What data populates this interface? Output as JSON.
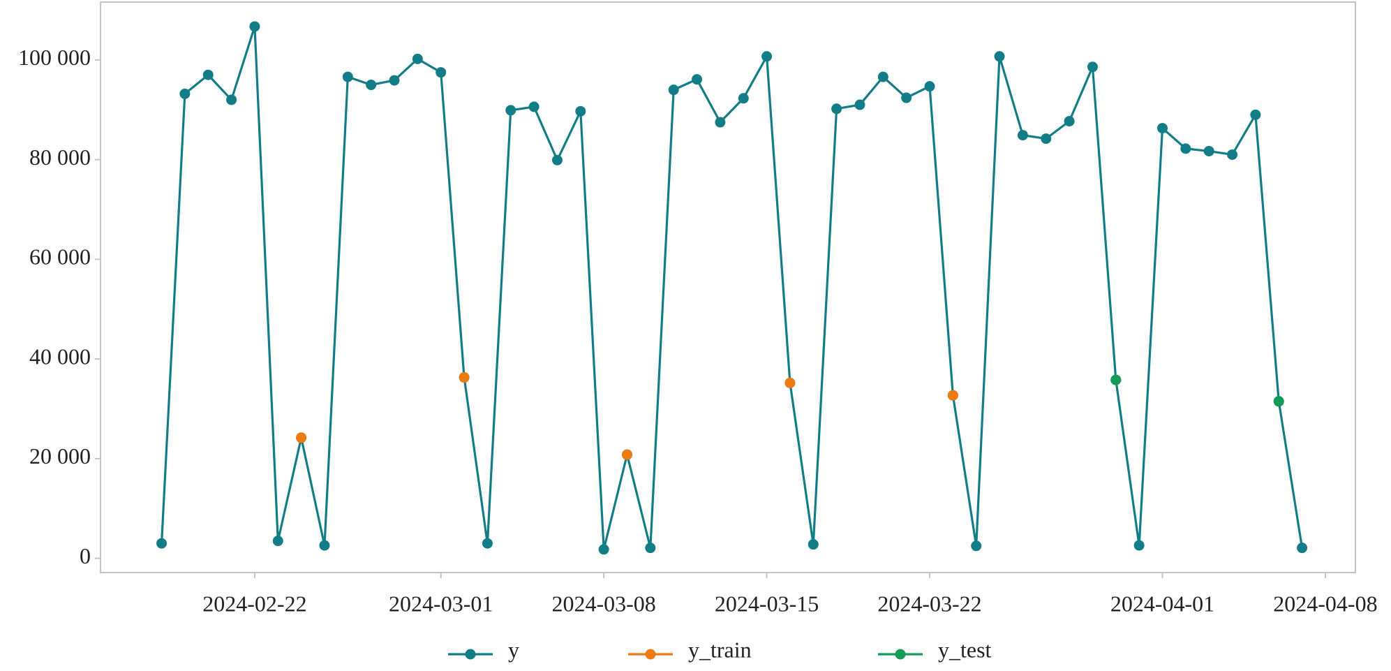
{
  "chart_data": {
    "type": "line",
    "x": [
      "2024-02-18",
      "2024-02-19",
      "2024-02-20",
      "2024-02-21",
      "2024-02-22",
      "2024-02-23",
      "2024-02-24",
      "2024-02-25",
      "2024-02-26",
      "2024-02-27",
      "2024-02-28",
      "2024-02-29",
      "2024-03-01",
      "2024-03-02",
      "2024-03-03",
      "2024-03-04",
      "2024-03-05",
      "2024-03-06",
      "2024-03-07",
      "2024-03-08",
      "2024-03-09",
      "2024-03-10",
      "2024-03-11",
      "2024-03-12",
      "2024-03-13",
      "2024-03-14",
      "2024-03-15",
      "2024-03-16",
      "2024-03-17",
      "2024-03-18",
      "2024-03-19",
      "2024-03-20",
      "2024-03-21",
      "2024-03-22",
      "2024-03-23",
      "2024-03-24",
      "2024-03-25",
      "2024-03-26",
      "2024-03-27",
      "2024-03-28",
      "2024-03-29",
      "2024-03-30",
      "2024-03-31",
      "2024-04-01",
      "2024-04-02",
      "2024-04-03",
      "2024-04-04",
      "2024-04-05",
      "2024-04-06",
      "2024-04-07"
    ],
    "series": [
      {
        "name": "y",
        "color": "#137d87",
        "values": [
          3000,
          93200,
          97000,
          92000,
          106700,
          3500,
          24200,
          2600,
          96600,
          95000,
          95900,
          100200,
          97500,
          36300,
          3000,
          89900,
          90600,
          79900,
          89700,
          1800,
          20800,
          2100,
          94000,
          96100,
          87500,
          92300,
          100700,
          35200,
          2800,
          90200,
          91000,
          96600,
          92400,
          94700,
          32700,
          2500,
          100700,
          84900,
          84200,
          87700,
          98600,
          35800,
          2600,
          86300,
          82200,
          81700,
          81000,
          89000,
          31500,
          2100
        ]
      },
      {
        "name": "y_train",
        "color": "#ee7a12",
        "values": [
          null,
          null,
          null,
          null,
          null,
          null,
          24200,
          null,
          null,
          null,
          null,
          null,
          null,
          36300,
          null,
          null,
          null,
          null,
          null,
          null,
          20800,
          null,
          null,
          null,
          null,
          null,
          null,
          35200,
          null,
          null,
          null,
          null,
          null,
          null,
          32700,
          null,
          null,
          null,
          null,
          null,
          null,
          null,
          null,
          null,
          null,
          null,
          null,
          null,
          null,
          null
        ]
      },
      {
        "name": "y_test",
        "color": "#129c57",
        "values": [
          null,
          null,
          null,
          null,
          null,
          null,
          null,
          null,
          null,
          null,
          null,
          null,
          null,
          null,
          null,
          null,
          null,
          null,
          null,
          null,
          null,
          null,
          null,
          null,
          null,
          null,
          null,
          null,
          null,
          null,
          null,
          null,
          null,
          null,
          null,
          null,
          null,
          null,
          null,
          null,
          null,
          35800,
          null,
          null,
          null,
          null,
          null,
          null,
          31500,
          null
        ]
      }
    ],
    "xlim": [
      "2024-02-15T09:00:00Z",
      "2024-04-09T07:00:00Z"
    ],
    "xticks": [
      "2024-02-22",
      "2024-03-01",
      "2024-03-08",
      "2024-03-15",
      "2024-03-22",
      "2024-04-01",
      "2024-04-08"
    ],
    "ylim": [
      -2850,
      111600
    ],
    "yticks": [
      0,
      {
        "value": 20000,
        "label": "20 000"
      },
      {
        "value": 40000,
        "label": "40 000"
      },
      {
        "value": 60000,
        "label": "60 000"
      },
      {
        "value": 80000,
        "label": "80 000"
      },
      {
        "value": 100000,
        "label": "100 000"
      }
    ],
    "legend": "bottom"
  }
}
